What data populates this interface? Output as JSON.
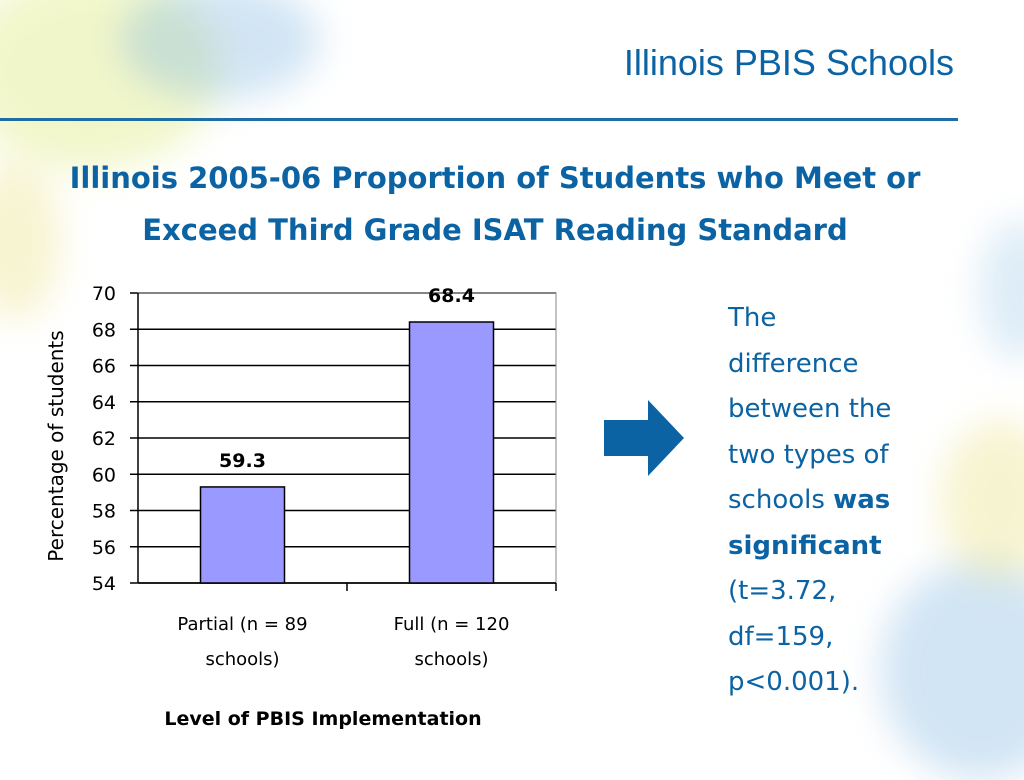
{
  "header": {
    "title": "Illinois PBIS Schools"
  },
  "chart_title": {
    "line1": "Illinois 2005-06 Proportion of Students who Meet or",
    "line2": "Exceed Third Grade ISAT Reading Standard"
  },
  "annotation": {
    "line1": "The",
    "line2": "difference",
    "line3": "between the",
    "line4": "two types of",
    "line5_prefix": "schools ",
    "line5_bold": "was",
    "line6_bold": "significant",
    "line7": "(t=3.72,",
    "line8": "df=159,",
    "line9": "p<0.001)."
  },
  "colors": {
    "accent": "#0b63a3",
    "bar": "#9999ff",
    "arrow": "#0b63a3"
  },
  "icons": {
    "arrow": "right-arrow-icon"
  },
  "chart_data": {
    "type": "bar",
    "categories": [
      {
        "line1": "Partial (n = 89",
        "line2": "schools)"
      },
      {
        "line1": "Full (n = 120",
        "line2": "schools)"
      }
    ],
    "values": [
      59.3,
      68.4
    ],
    "data_labels": [
      "59.3",
      "68.4"
    ],
    "xlabel": "Level of PBIS Implementation",
    "ylabel": "Percentage of students",
    "ylim": [
      54,
      70
    ],
    "yticks": [
      54,
      56,
      58,
      60,
      62,
      64,
      66,
      68,
      70
    ],
    "grid": true,
    "legend": "none"
  }
}
